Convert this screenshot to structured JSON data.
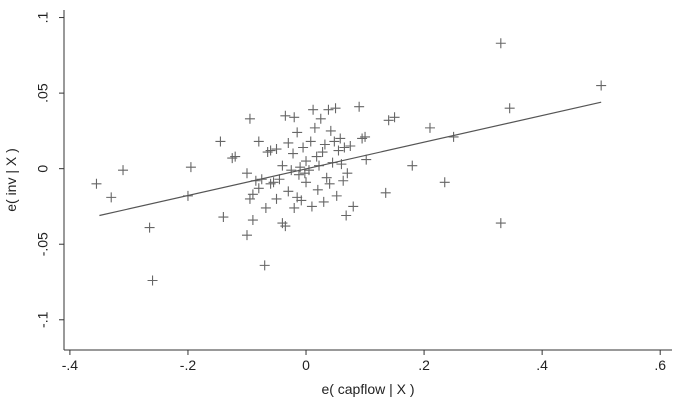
{
  "chart_data": {
    "type": "scatter",
    "xlabel": "e( capflow | X )",
    "ylabel": "e( inv | X )",
    "xlim": [
      -0.41,
      0.62
    ],
    "ylim": [
      -0.12,
      0.105
    ],
    "x_ticks": [
      {
        "value": -0.4,
        "label": "-.4"
      },
      {
        "value": -0.2,
        "label": "-.2"
      },
      {
        "value": 0,
        "label": "0"
      },
      {
        "value": 0.2,
        "label": ".2"
      },
      {
        "value": 0.4,
        "label": ".4"
      },
      {
        "value": 0.6,
        "label": ".6"
      }
    ],
    "y_ticks": [
      {
        "value": -0.1,
        "label": "-.1"
      },
      {
        "value": -0.05,
        "label": "-.05"
      },
      {
        "value": 0,
        "label": "0"
      },
      {
        "value": 0.05,
        "label": ".05"
      },
      {
        "value": 0.1,
        "label": ".1"
      }
    ],
    "grid": false,
    "marker": "+",
    "marker_color": "#666666",
    "fit_line": {
      "x": [
        -0.35,
        0.5
      ],
      "y": [
        -0.031,
        0.044
      ],
      "color": "#555555"
    },
    "series": [
      {
        "points": [
          [
            -0.355,
            -0.01
          ],
          [
            -0.33,
            -0.019
          ],
          [
            -0.31,
            -0.001
          ],
          [
            -0.265,
            -0.039
          ],
          [
            -0.26,
            -0.074
          ],
          [
            -0.2,
            -0.018
          ],
          [
            -0.195,
            0.001
          ],
          [
            -0.145,
            0.018
          ],
          [
            -0.14,
            -0.032
          ],
          [
            -0.125,
            0.007
          ],
          [
            -0.12,
            0.008
          ],
          [
            -0.1,
            -0.003
          ],
          [
            -0.1,
            -0.044
          ],
          [
            -0.095,
            0.033
          ],
          [
            -0.09,
            -0.017
          ],
          [
            -0.095,
            -0.02
          ],
          [
            -0.09,
            -0.034
          ],
          [
            -0.085,
            -0.008
          ],
          [
            -0.08,
            0.018
          ],
          [
            -0.08,
            -0.013
          ],
          [
            -0.075,
            -0.007
          ],
          [
            -0.07,
            -0.064
          ],
          [
            -0.068,
            -0.026
          ],
          [
            -0.065,
            0.011
          ],
          [
            -0.06,
            0.012
          ],
          [
            -0.06,
            -0.01
          ],
          [
            -0.055,
            -0.009
          ],
          [
            -0.05,
            0.013
          ],
          [
            -0.05,
            -0.02
          ],
          [
            -0.045,
            -0.007
          ],
          [
            -0.04,
            0.002
          ],
          [
            -0.04,
            -0.036
          ],
          [
            -0.035,
            0.035
          ],
          [
            -0.035,
            -0.038
          ],
          [
            -0.03,
            0.017
          ],
          [
            -0.03,
            -0.015
          ],
          [
            -0.025,
            -0.001
          ],
          [
            -0.022,
            0.01
          ],
          [
            -0.02,
            -0.026
          ],
          [
            -0.02,
            0.034
          ],
          [
            -0.015,
            0.024
          ],
          [
            -0.015,
            -0.019
          ],
          [
            -0.012,
            -0.004
          ],
          [
            -0.01,
            0.001
          ],
          [
            -0.008,
            -0.021
          ],
          [
            -0.005,
            0.014
          ],
          [
            -0.002,
            -0.003
          ],
          [
            0.0,
            -0.009
          ],
          [
            0.0,
            0.005
          ],
          [
            0.005,
            -0.001
          ],
          [
            0.008,
            0.018
          ],
          [
            0.01,
            -0.025
          ],
          [
            0.012,
            0.039
          ],
          [
            0.015,
            0.027
          ],
          [
            0.018,
            0.008
          ],
          [
            0.02,
            -0.014
          ],
          [
            0.022,
            0.002
          ],
          [
            0.025,
            0.033
          ],
          [
            0.028,
            0.011
          ],
          [
            0.03,
            -0.022
          ],
          [
            0.032,
            0.016
          ],
          [
            0.035,
            -0.006
          ],
          [
            0.038,
            0.039
          ],
          [
            0.04,
            -0.01
          ],
          [
            0.042,
            0.025
          ],
          [
            0.045,
            0.004
          ],
          [
            0.048,
            0.018
          ],
          [
            0.05,
            0.04
          ],
          [
            0.052,
            -0.018
          ],
          [
            0.055,
            0.012
          ],
          [
            0.058,
            0.02
          ],
          [
            0.06,
            0.003
          ],
          [
            0.063,
            -0.008
          ],
          [
            0.065,
            0.014
          ],
          [
            0.068,
            -0.031
          ],
          [
            0.07,
            -0.003
          ],
          [
            0.075,
            0.015
          ],
          [
            0.08,
            -0.025
          ],
          [
            0.09,
            0.041
          ],
          [
            0.095,
            0.02
          ],
          [
            0.1,
            0.021
          ],
          [
            0.102,
            0.006
          ],
          [
            0.135,
            -0.016
          ],
          [
            0.14,
            0.032
          ],
          [
            0.15,
            0.034
          ],
          [
            0.18,
            0.002
          ],
          [
            0.21,
            0.027
          ],
          [
            0.235,
            -0.009
          ],
          [
            0.25,
            0.021
          ],
          [
            0.33,
            0.083
          ],
          [
            0.33,
            -0.036
          ],
          [
            0.345,
            0.04
          ],
          [
            0.5,
            0.055
          ]
        ]
      }
    ]
  }
}
